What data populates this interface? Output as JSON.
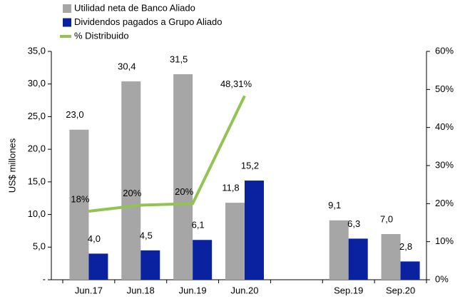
{
  "chart_data": {
    "type": "bar",
    "categories": [
      "Jun.17",
      "Jun.18",
      "Jun.19",
      "Jun.20",
      null,
      "Sep.19",
      "Sep.20"
    ],
    "series": [
      {
        "name": "Utilidad neta de Banco Aliado",
        "color": "#a6a6a6",
        "values": [
          23.0,
          30.4,
          31.5,
          11.8,
          null,
          9.1,
          7.0
        ],
        "value_labels": [
          "23,0",
          "30,4",
          "31,5",
          "11,8",
          null,
          "9,1",
          "7,0"
        ]
      },
      {
        "name": "Dividendos pagados a Grupo Aliado",
        "color": "#0a22a0",
        "values": [
          4.0,
          4.5,
          6.1,
          15.2,
          null,
          6.3,
          2.8
        ],
        "value_labels": [
          "4,0",
          "4,5",
          "6,1",
          "15,2",
          null,
          "6,3",
          "2,8"
        ]
      },
      {
        "name": "% Distribuido",
        "type": "line",
        "axis": "y2",
        "color": "#92c353",
        "values": [
          18,
          19.6,
          20,
          48.31,
          null,
          null,
          null
        ],
        "value_labels": [
          "18%",
          "20%",
          "20%",
          "48,31%",
          null,
          null,
          null
        ]
      }
    ],
    "ylabel": "US$ millones",
    "ylim": [
      0,
      35
    ],
    "yticks": [
      {
        "value": 0,
        "label": "-"
      },
      {
        "value": 5,
        "label": "5,0"
      },
      {
        "value": 10,
        "label": "10,0"
      },
      {
        "value": 15,
        "label": "15,0"
      },
      {
        "value": 20,
        "label": "20,0"
      },
      {
        "value": 25,
        "label": "25,0"
      },
      {
        "value": 30,
        "label": "30,0"
      },
      {
        "value": 35,
        "label": "35,0"
      }
    ],
    "y2lim": [
      0,
      60
    ],
    "y2ticks": [
      {
        "value": 0,
        "label": "0%"
      },
      {
        "value": 10,
        "label": "10%"
      },
      {
        "value": 20,
        "label": "20%"
      },
      {
        "value": 30,
        "label": "30%"
      },
      {
        "value": 40,
        "label": "40%"
      },
      {
        "value": 50,
        "label": "50%"
      },
      {
        "value": 60,
        "label": "60%"
      }
    ],
    "legend": "top-left"
  }
}
